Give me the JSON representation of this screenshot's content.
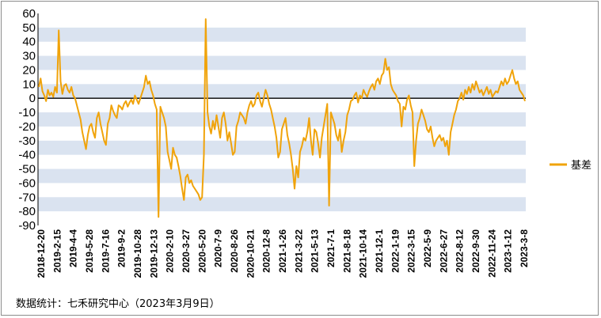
{
  "chart_data": {
    "type": "line",
    "title": "",
    "xlabel": "",
    "ylabel": "",
    "ylim": [
      -90,
      60
    ],
    "y_ticks": [
      60,
      50,
      40,
      30,
      20,
      10,
      0,
      -10,
      -20,
      -30,
      -40,
      -50,
      -60,
      -70,
      -80,
      -90
    ],
    "x_tick_labels": [
      "2018-12-20",
      "2019-2-15",
      "2019-4-4",
      "2019-5-28",
      "2019-7-16",
      "2019-9-2",
      "2019-10-28",
      "2019-12-13",
      "2020-2-10",
      "2020-3-27",
      "2020-5-20",
      "2020-7-9",
      "2020-8-26",
      "2020-10-21",
      "2020-12-8",
      "2021-1-26",
      "2021-3-22",
      "2021-5-13",
      "2021-7-1",
      "2021-8-18",
      "2021-10-14",
      "2021-12-1",
      "2022-1-19",
      "2022-3-15",
      "2022-5-9",
      "2022-6-27",
      "2022-8-12",
      "2022-9-30",
      "2022-11-24",
      "2023-1-12",
      "2023-3-8"
    ],
    "grid": "horizontal alternating bands",
    "legend_position": "right",
    "series": [
      {
        "name": "基差",
        "color": "#f0a30a",
        "values": [
          8,
          14,
          5,
          2,
          -2,
          6,
          2,
          4,
          1,
          8,
          4,
          48,
          12,
          3,
          9,
          10,
          6,
          4,
          8,
          2,
          0,
          -5,
          -10,
          -15,
          -24,
          -30,
          -36,
          -26,
          -20,
          -18,
          -24,
          -28,
          -14,
          -10,
          -18,
          -24,
          -30,
          -33,
          -18,
          -14,
          -5,
          -9,
          -12,
          -14,
          -5,
          -6,
          -8,
          -4,
          -2,
          -6,
          -3,
          -1,
          -4,
          2,
          -1,
          -4,
          0,
          4,
          8,
          16,
          10,
          12,
          6,
          2,
          -4,
          -8,
          -84,
          -6,
          -10,
          -14,
          -20,
          -38,
          -44,
          -50,
          -35,
          -40,
          -42,
          -48,
          -55,
          -64,
          -72,
          -56,
          -54,
          -60,
          -58,
          -62,
          -64,
          -66,
          -68,
          -72,
          -70,
          -40,
          56,
          -10,
          -20,
          -25,
          -16,
          -22,
          -12,
          -20,
          -28,
          -14,
          -10,
          -18,
          -30,
          -24,
          -32,
          -40,
          -38,
          -20,
          -16,
          -10,
          -12,
          -14,
          -18,
          -10,
          -5,
          -2,
          -6,
          -4,
          2,
          4,
          -2,
          -6,
          0,
          6,
          2,
          -4,
          -8,
          -14,
          -20,
          -28,
          -42,
          -38,
          -22,
          -18,
          -14,
          -26,
          -32,
          -40,
          -50,
          -64,
          -48,
          -56,
          -38,
          -34,
          -28,
          -30,
          -24,
          -14,
          -30,
          -40,
          -22,
          -24,
          -32,
          -42,
          -28,
          -20,
          -12,
          -4,
          -76,
          -10,
          -14,
          -18,
          -26,
          -30,
          -22,
          -38,
          -30,
          -24,
          -12,
          -8,
          -2,
          -1,
          2,
          4,
          -3,
          2,
          0,
          6,
          3,
          1,
          5,
          8,
          10,
          6,
          12,
          14,
          10,
          16,
          18,
          28,
          20,
          22,
          10,
          6,
          4,
          2,
          -2,
          -4,
          -20,
          -6,
          -8,
          -1,
          2,
          -5,
          -10,
          -48,
          -30,
          -18,
          -14,
          -8,
          -12,
          -16,
          -22,
          -24,
          -20,
          -28,
          -34,
          -30,
          -28,
          -26,
          -30,
          -28,
          -34,
          -30,
          -40,
          -24,
          -18,
          -12,
          -8,
          -2,
          0,
          4,
          -1,
          6,
          3,
          8,
          4,
          10,
          6,
          12,
          8,
          4,
          6,
          2,
          5,
          8,
          3,
          6,
          1,
          3,
          5,
          4,
          8,
          12,
          9,
          14,
          10,
          12,
          16,
          20,
          14,
          10,
          12,
          6,
          4,
          2,
          -2
        ]
      }
    ]
  },
  "legend": {
    "label": "基差"
  },
  "source_note": "数据统计：七禾研究中心（2023年3月9日）"
}
